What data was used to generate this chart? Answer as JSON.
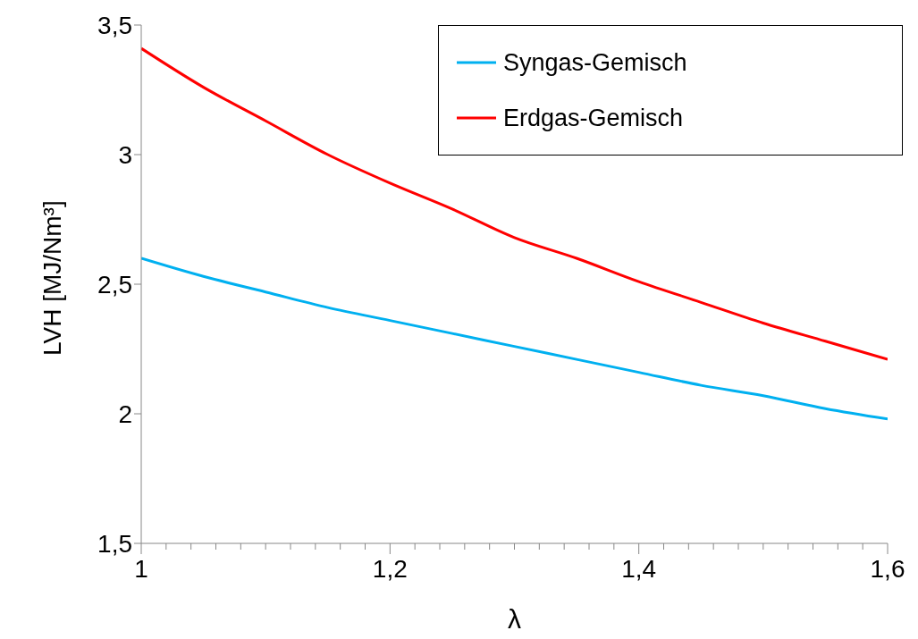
{
  "chart_data": {
    "type": "line",
    "xlabel": "λ",
    "ylabel": "LVH [MJ/Nm³]",
    "x": [
      1,
      1.05,
      1.1,
      1.15,
      1.2,
      1.25,
      1.3,
      1.35,
      1.4,
      1.45,
      1.5,
      1.55,
      1.6
    ],
    "series": [
      {
        "name": "Syngas-Gemisch",
        "color": "#00b0f0",
        "values": [
          2.6,
          2.53,
          2.47,
          2.41,
          2.36,
          2.31,
          2.26,
          2.21,
          2.16,
          2.11,
          2.07,
          2.02,
          1.98
        ]
      },
      {
        "name": "Erdgas-Gemisch",
        "color": "#ff0000",
        "values": [
          3.41,
          3.26,
          3.13,
          3.0,
          2.89,
          2.79,
          2.68,
          2.6,
          2.51,
          2.43,
          2.35,
          2.28,
          2.21
        ]
      }
    ],
    "xlim": [
      1,
      1.6
    ],
    "xticks": [
      {
        "value": 1,
        "label": "1"
      },
      {
        "value": 1.02,
        "label": null
      },
      {
        "value": 1.04,
        "label": null
      },
      {
        "value": 1.06,
        "label": null
      },
      {
        "value": 1.08,
        "label": null
      },
      {
        "value": 1.1,
        "label": null
      },
      {
        "value": 1.12,
        "label": null
      },
      {
        "value": 1.14,
        "label": null
      },
      {
        "value": 1.16,
        "label": null
      },
      {
        "value": 1.18,
        "label": null
      },
      {
        "value": 1.2,
        "label": "1,2"
      },
      {
        "value": 1.22,
        "label": null
      },
      {
        "value": 1.24,
        "label": null
      },
      {
        "value": 1.26,
        "label": null
      },
      {
        "value": 1.28,
        "label": null
      },
      {
        "value": 1.3,
        "label": null
      },
      {
        "value": 1.32,
        "label": null
      },
      {
        "value": 1.34,
        "label": null
      },
      {
        "value": 1.36,
        "label": null
      },
      {
        "value": 1.38,
        "label": null
      },
      {
        "value": 1.4,
        "label": "1,4"
      },
      {
        "value": 1.42,
        "label": null
      },
      {
        "value": 1.44,
        "label": null
      },
      {
        "value": 1.46,
        "label": null
      },
      {
        "value": 1.48,
        "label": null
      },
      {
        "value": 1.5,
        "label": null
      },
      {
        "value": 1.52,
        "label": null
      },
      {
        "value": 1.54,
        "label": null
      },
      {
        "value": 1.56,
        "label": null
      },
      {
        "value": 1.58,
        "label": null
      },
      {
        "value": 1.6,
        "label": "1,6"
      }
    ],
    "ylim": [
      1.5,
      3.5
    ],
    "yticks": [
      {
        "value": 1.5,
        "label": "1,5"
      },
      2,
      {
        "value": 2.5,
        "label": "2,5"
      },
      3,
      {
        "value": 3.5,
        "label": "3,5"
      }
    ],
    "grid": false,
    "legend": "top right",
    "marker": "none",
    "line_style": "solid"
  }
}
